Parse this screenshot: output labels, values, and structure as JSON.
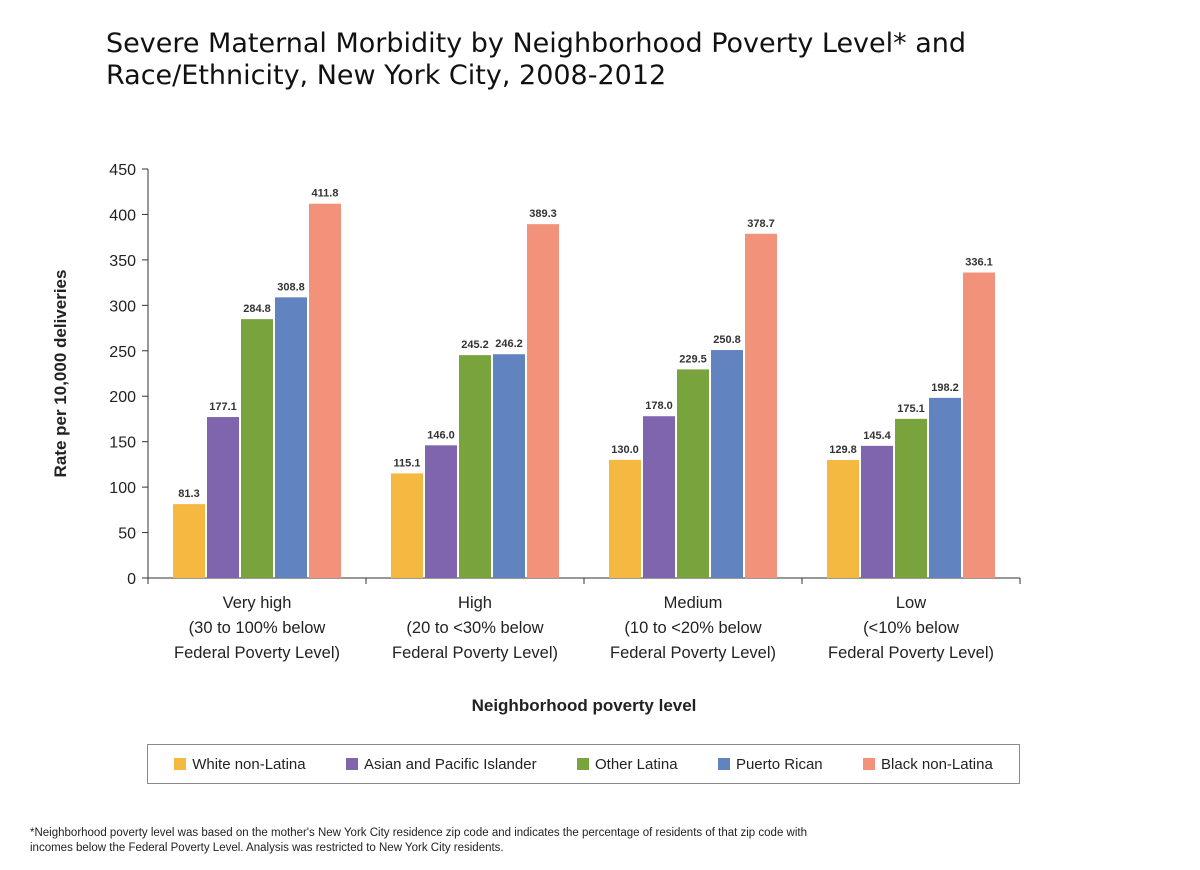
{
  "title_lines": [
    "Severe Maternal Morbidity by Neighborhood Poverty Level* and",
    "Race/Ethnicity, New York City, 2008-2012"
  ],
  "footnote_lines": [
    "*Neighborhood poverty level was based on the mother's New York City residence zip code and indicates the percentage of residents of that zip code with",
    "incomes below the Federal Poverty Level. Analysis was restricted to New York City residents."
  ],
  "chart_data": {
    "type": "bar",
    "title": "Severe Maternal Morbidity by Neighborhood Poverty Level* and Race/Ethnicity, New York City, 2008-2012",
    "xlabel": "Neighborhood poverty level",
    "ylabel": "Rate per 10,000 deliveries",
    "ylim": [
      0,
      450
    ],
    "yticks": [
      0,
      50,
      100,
      150,
      200,
      250,
      300,
      350,
      400,
      450
    ],
    "categories": [
      [
        "Very high",
        "(30 to 100% below",
        "Federal Poverty Level)"
      ],
      [
        "High",
        "(20 to <30% below",
        "Federal Poverty Level)"
      ],
      [
        "Medium",
        "(10 to <20% below",
        "Federal Poverty Level)"
      ],
      [
        "Low",
        "(<10% below",
        "Federal Poverty Level)"
      ]
    ],
    "series": [
      {
        "name": "White non-Latina",
        "color": "#f5b841",
        "values": [
          81.3,
          115.1,
          130.0,
          129.8
        ]
      },
      {
        "name": "Asian and Pacific Islander",
        "color": "#7e65ad",
        "values": [
          177.1,
          146.0,
          178.0,
          145.4
        ]
      },
      {
        "name": "Other Latina",
        "color": "#79a33d",
        "values": [
          284.8,
          245.2,
          229.5,
          175.1
        ]
      },
      {
        "name": "Puerto Rican",
        "color": "#6183bf",
        "values": [
          308.8,
          246.2,
          250.8,
          198.2
        ]
      },
      {
        "name": "Black non-Latina",
        "color": "#f3927a",
        "values": [
          411.8,
          389.3,
          378.7,
          336.1
        ]
      }
    ],
    "legend_position": "bottom",
    "grid": false
  }
}
